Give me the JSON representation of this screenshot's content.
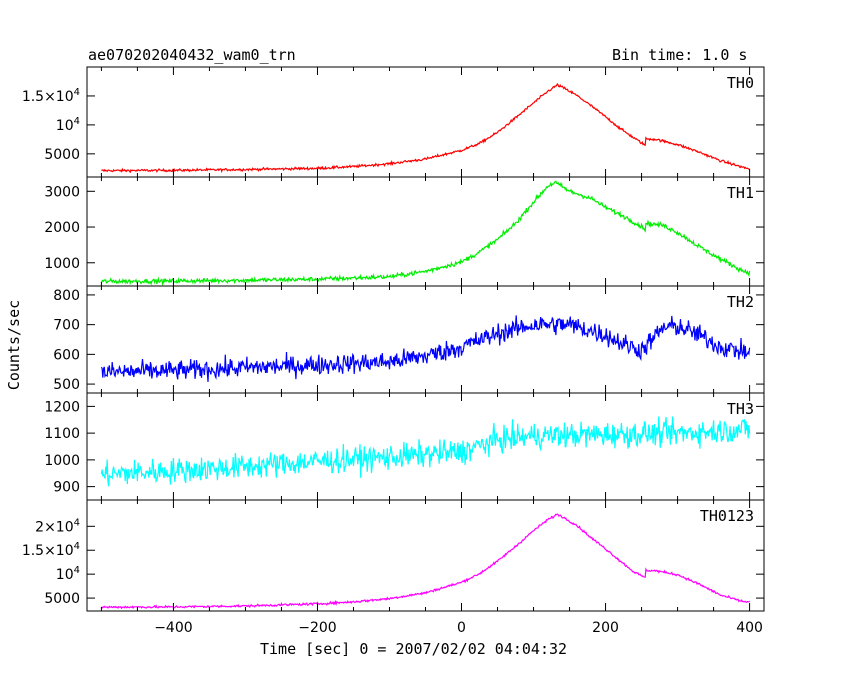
{
  "chart_data": {
    "type": "line",
    "title": "ae070202040432_wam0_trn",
    "bin_time_label": "Bin time: 1.0 s",
    "xlabel": "Time [sec] 0 = 2007/02/02 04:04:32",
    "ylabel": "Counts/sec",
    "xlim": [
      -520,
      420
    ],
    "x_ticks": [
      -400,
      -200,
      0,
      200,
      400
    ],
    "x_tick_labels": [
      "−400",
      "−200",
      "0",
      "200",
      "400"
    ],
    "grid": false,
    "panels": [
      {
        "name": "TH0",
        "color": "#ff0000",
        "ylim": [
          1000,
          20000
        ],
        "y_ticks": [
          5000,
          10000,
          15000
        ],
        "y_tick_labels": [
          "5000",
          "10^4",
          "1.5×10^4"
        ],
        "noise": 150,
        "x": [
          -500,
          -400,
          -300,
          -200,
          -150,
          -100,
          -50,
          0,
          25,
          50,
          75,
          100,
          120,
          133,
          140,
          160,
          180,
          200,
          220,
          240,
          255,
          256,
          270,
          300,
          330,
          360,
          390,
          400
        ],
        "y": [
          2100,
          2150,
          2300,
          2500,
          2800,
          3300,
          4100,
          5600,
          6800,
          8700,
          11200,
          13800,
          15800,
          16900,
          16500,
          15100,
          13300,
          11400,
          9400,
          7700,
          6500,
          7600,
          7500,
          6600,
          5300,
          3800,
          2700,
          2400
        ]
      },
      {
        "name": "TH1",
        "color": "#00ee00",
        "ylim": [
          350,
          3400
        ],
        "y_ticks": [
          1000,
          2000,
          3000
        ],
        "y_tick_labels": [
          "1000",
          "2000",
          "3000"
        ],
        "noise": 45,
        "x": [
          -500,
          -400,
          -300,
          -200,
          -100,
          -50,
          0,
          25,
          50,
          75,
          100,
          120,
          130,
          150,
          180,
          200,
          230,
          255,
          256,
          280,
          300,
          330,
          360,
          390,
          400
        ],
        "y": [
          480,
          490,
          510,
          540,
          610,
          760,
          1020,
          1300,
          1650,
          2100,
          2700,
          3150,
          3250,
          3000,
          2800,
          2550,
          2250,
          1950,
          2100,
          2050,
          1850,
          1450,
          1100,
          780,
          720
        ]
      },
      {
        "name": "TH2",
        "color": "#0000ff",
        "ylim": [
          470,
          830
        ],
        "y_ticks": [
          500,
          600,
          700,
          800
        ],
        "y_tick_labels": [
          "500",
          "600",
          "700",
          "800"
        ],
        "noise": 24,
        "x": [
          -500,
          -400,
          -300,
          -200,
          -100,
          -50,
          0,
          50,
          100,
          150,
          200,
          230,
          250,
          265,
          280,
          300,
          330,
          360,
          400
        ],
        "y": [
          540,
          545,
          555,
          565,
          575,
          595,
          625,
          670,
          700,
          700,
          665,
          630,
          615,
          650,
          690,
          695,
          665,
          625,
          605
        ]
      },
      {
        "name": "TH3",
        "color": "#00ffff",
        "ylim": [
          850,
          1250
        ],
        "y_ticks": [
          900,
          1000,
          1100,
          1200
        ],
        "y_tick_labels": [
          "900",
          "1000",
          "1100",
          "1200"
        ],
        "noise": 34,
        "x": [
          -500,
          -400,
          -300,
          -200,
          -100,
          0,
          50,
          100,
          200,
          300,
          400
        ],
        "y": [
          945,
          960,
          975,
          995,
          1010,
          1030,
          1075,
          1090,
          1095,
          1100,
          1115
        ]
      },
      {
        "name": "TH0123",
        "color": "#ff00ff",
        "ylim": [
          2300,
          25500
        ],
        "y_ticks": [
          5000,
          10000,
          15000,
          20000
        ],
        "y_tick_labels": [
          "5000",
          "10^4",
          "1.5×10^4",
          "2×10^4"
        ],
        "noise": 170,
        "x": [
          -500,
          -400,
          -300,
          -200,
          -150,
          -100,
          -50,
          0,
          25,
          50,
          75,
          100,
          120,
          133,
          140,
          160,
          180,
          200,
          220,
          240,
          255,
          256,
          270,
          300,
          330,
          360,
          390,
          400
        ],
        "y": [
          3100,
          3150,
          3350,
          3800,
          4200,
          4900,
          6100,
          8300,
          10100,
          12700,
          15800,
          19100,
          21400,
          22500,
          22000,
          20200,
          17600,
          15300,
          12800,
          10400,
          9300,
          10800,
          10700,
          9900,
          7900,
          5600,
          4300,
          4200
        ]
      }
    ]
  }
}
